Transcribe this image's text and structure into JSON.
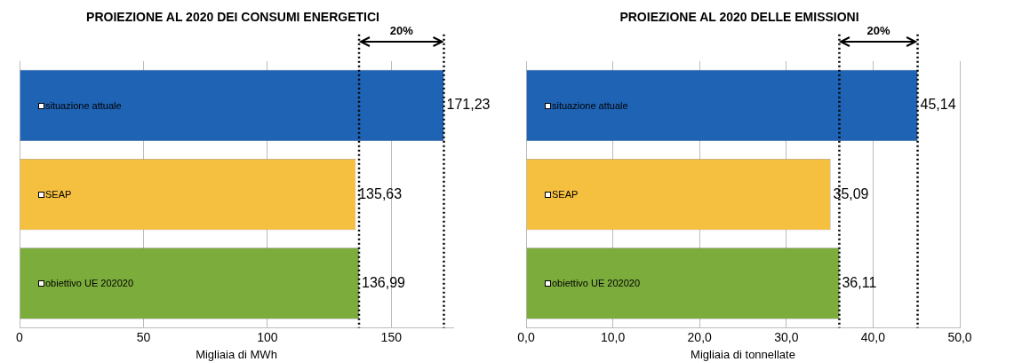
{
  "chart_data": [
    {
      "type": "bar",
      "orientation": "horizontal",
      "title": "PROIEZIONE AL 2020 DEI CONSUMI ENERGETICI",
      "xlabel": "Migliaia di MWh",
      "categories": [
        "situazione attuale",
        "SEAP",
        "obiettivo UE 202020"
      ],
      "values": [
        171.23,
        135.63,
        136.99
      ],
      "colors": [
        "#1f63b5",
        "#f5c040",
        "#7cac3c"
      ],
      "value_labels": [
        "171,23",
        "135,63",
        "136,99"
      ],
      "xlim": [
        0,
        175
      ],
      "xticks": [
        0,
        50,
        100,
        150
      ],
      "grid": "x",
      "ref_lines": [
        {
          "axis": "x",
          "value": 136.99,
          "line_style": "dotted"
        },
        {
          "axis": "x",
          "value": 171.23,
          "line_style": "dotted"
        }
      ],
      "annotations": [
        "20%"
      ]
    },
    {
      "type": "bar",
      "orientation": "horizontal",
      "title": "PROIEZIONE AL 2020 DELLE EMISSIONI",
      "xlabel": "Migliaia di tonnellate",
      "categories": [
        "situazione attuale",
        "SEAP",
        "obiettivo UE 202020"
      ],
      "values": [
        45.14,
        35.09,
        36.11
      ],
      "colors": [
        "#1f63b5",
        "#f5c040",
        "#7cac3c"
      ],
      "value_labels": [
        "45,14",
        "35,09",
        "36,11"
      ],
      "xlim": [
        0,
        50
      ],
      "xticks": [
        {
          "value": 0,
          "label": "0,0"
        },
        {
          "value": 10,
          "label": "10,0"
        },
        {
          "value": 20,
          "label": "20,0"
        },
        {
          "value": 30,
          "label": "30,0"
        },
        {
          "value": 40,
          "label": "40,0"
        },
        {
          "value": 50,
          "label": "50,0"
        }
      ],
      "grid": "x",
      "ref_lines": [
        {
          "axis": "x",
          "value": 36.11,
          "line_style": "dotted"
        },
        {
          "axis": "x",
          "value": 45.14,
          "line_style": "dotted"
        }
      ],
      "annotations": [
        "20%"
      ]
    }
  ]
}
